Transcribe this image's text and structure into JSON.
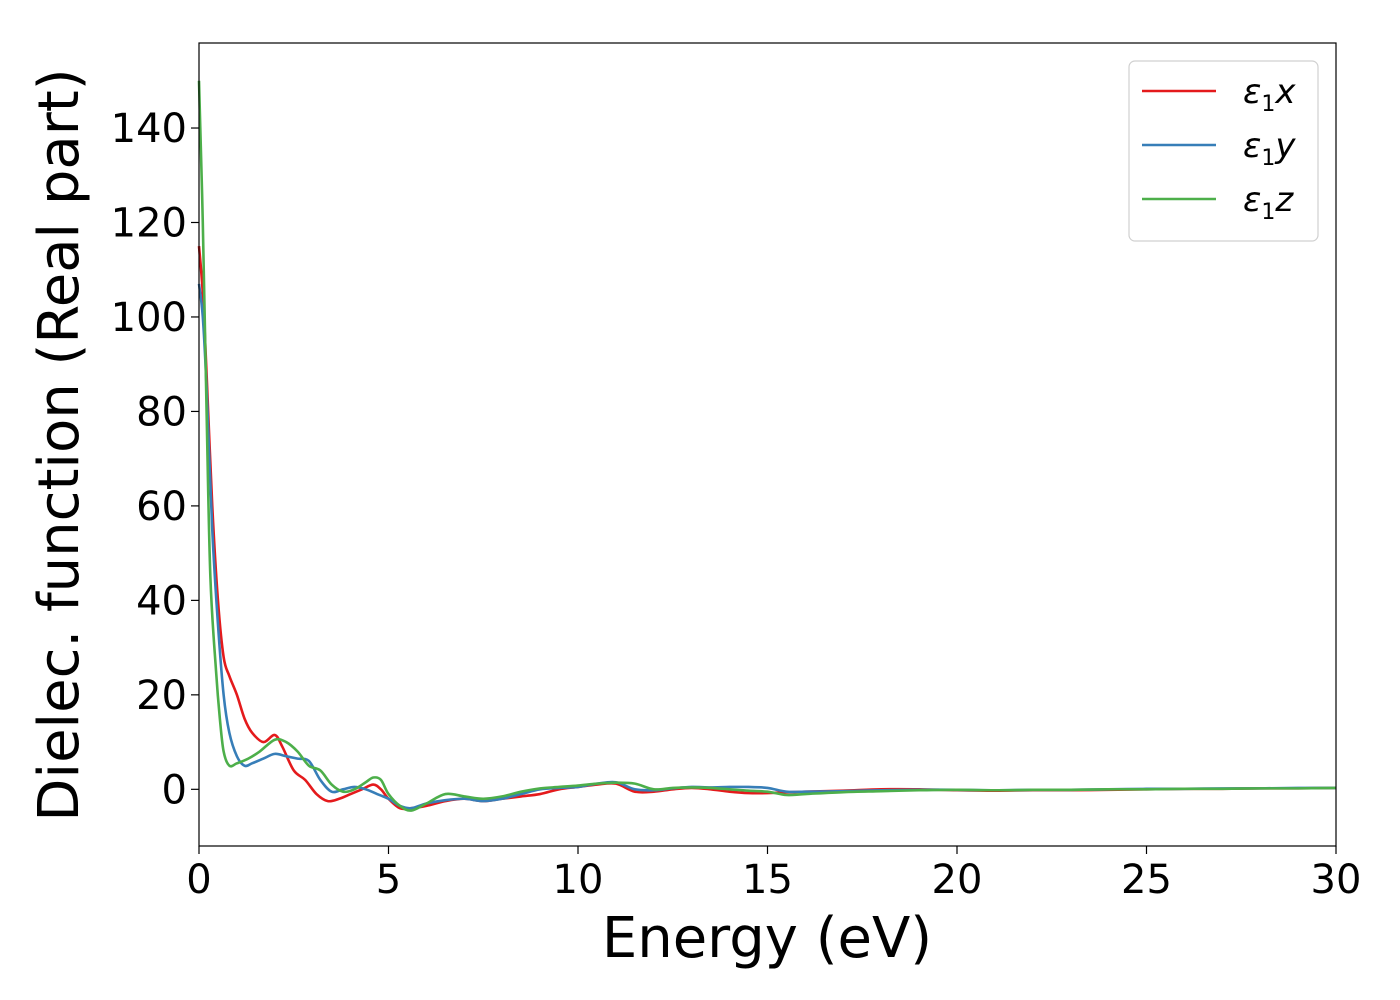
{
  "chart_data": {
    "type": "line",
    "xlabel": "Energy (eV)",
    "ylabel": "Dielec. function (Real part)",
    "xlim": [
      0,
      30
    ],
    "ylim": [
      -12,
      158
    ],
    "xticks": [
      0,
      5,
      10,
      15,
      20,
      25,
      30
    ],
    "yticks": [
      0,
      20,
      40,
      60,
      80,
      100,
      120,
      140
    ],
    "grid": false,
    "legend_position": "top-right",
    "series": [
      {
        "name": "ε1x",
        "symbol": "ε",
        "subscript": "1",
        "axis": "x",
        "color": "#e41a1c",
        "x": [
          0,
          0.1,
          0.2,
          0.35,
          0.5,
          0.65,
          0.8,
          1.0,
          1.2,
          1.4,
          1.7,
          2.0,
          2.2,
          2.5,
          2.8,
          3.1,
          3.4,
          3.7,
          4.0,
          4.3,
          4.6,
          4.8,
          5.0,
          5.3,
          5.6,
          6.0,
          6.5,
          7.0,
          7.5,
          8.0,
          8.5,
          9.0,
          9.5,
          10.0,
          10.5,
          11.0,
          11.5,
          12.0,
          12.5,
          13.0,
          13.5,
          14.0,
          14.5,
          15.0,
          16.0,
          17.0,
          18.0,
          19.0,
          20.0,
          21.0,
          22.0,
          23.0,
          24.0,
          25.0,
          26.0,
          27.0,
          28.0,
          29.0,
          30.0
        ],
        "y": [
          115,
          105,
          88,
          60,
          40,
          28,
          24,
          20,
          15,
          12,
          10,
          11.5,
          9,
          4,
          2,
          -1,
          -2.5,
          -2,
          -1,
          0,
          1,
          0,
          -2,
          -4,
          -4,
          -3.5,
          -2.5,
          -2,
          -2.5,
          -2,
          -1.5,
          -1,
          0,
          0.5,
          1,
          1.2,
          -0.5,
          -0.5,
          0,
          0.3,
          0,
          -0.5,
          -0.8,
          -0.8,
          -0.5,
          -0.3,
          0,
          0,
          -0.2,
          -0.3,
          -0.2,
          -0.2,
          -0.1,
          0,
          0.1,
          0.1,
          0.2,
          0.2,
          0.3
        ]
      },
      {
        "name": "ε1y",
        "symbol": "ε",
        "subscript": "1",
        "axis": "y",
        "color": "#377eb8",
        "x": [
          0,
          0.1,
          0.2,
          0.35,
          0.5,
          0.65,
          0.8,
          1.0,
          1.2,
          1.4,
          1.7,
          2.0,
          2.3,
          2.6,
          2.9,
          3.2,
          3.5,
          3.8,
          4.1,
          4.4,
          4.7,
          5.0,
          5.3,
          5.6,
          6.0,
          6.5,
          7.0,
          7.5,
          8.0,
          8.5,
          9.0,
          9.5,
          10.0,
          10.5,
          11.0,
          11.5,
          12.0,
          12.5,
          13.0,
          13.5,
          14.0,
          14.5,
          15.0,
          15.5,
          16.0,
          17.0,
          18.0,
          19.0,
          20.0,
          21.0,
          22.0,
          23.0,
          24.0,
          25.0,
          26.0,
          27.0,
          28.0,
          29.0,
          30.0
        ],
        "y": [
          107,
          100,
          85,
          55,
          35,
          20,
          12,
          7,
          5,
          5.5,
          6.5,
          7.5,
          7,
          6.5,
          6,
          2,
          -0.5,
          0,
          0.5,
          0,
          -1,
          -2,
          -3.5,
          -4,
          -3,
          -2.3,
          -2,
          -2.5,
          -2,
          -1,
          0,
          0.3,
          0.5,
          1.2,
          1.5,
          0,
          -0.2,
          0.2,
          0.5,
          0.4,
          0.5,
          0.5,
          0.3,
          -0.5,
          -0.5,
          -0.4,
          -0.2,
          -0.1,
          -0.1,
          -0.2,
          -0.1,
          -0.1,
          0,
          0.1,
          0.1,
          0.2,
          0.2,
          0.3,
          0.3
        ]
      },
      {
        "name": "ε1z",
        "symbol": "ε",
        "subscript": "1",
        "axis": "z",
        "color": "#4daf4a",
        "x": [
          0,
          0.1,
          0.2,
          0.3,
          0.45,
          0.55,
          0.65,
          0.8,
          1.0,
          1.3,
          1.6,
          2.0,
          2.3,
          2.6,
          2.9,
          3.2,
          3.5,
          3.8,
          4.1,
          4.4,
          4.6,
          4.8,
          5.0,
          5.3,
          5.6,
          6.0,
          6.5,
          7.0,
          7.5,
          8.0,
          8.5,
          9.0,
          9.5,
          10.0,
          10.5,
          11.0,
          11.5,
          12.0,
          12.5,
          13.0,
          13.5,
          14.0,
          14.5,
          15.0,
          15.5,
          16.0,
          17.0,
          18.0,
          19.0,
          20.0,
          21.0,
          22.0,
          23.0,
          24.0,
          25.0,
          26.0,
          27.0,
          28.0,
          29.0,
          30.0
        ],
        "y": [
          150,
          120,
          80,
          45,
          25,
          15,
          8,
          5,
          5.5,
          6.5,
          8,
          10.5,
          10,
          8,
          5,
          4,
          1,
          -0.5,
          0,
          1.5,
          2.5,
          2,
          -1,
          -3.5,
          -4.5,
          -3,
          -1,
          -1.5,
          -2,
          -1.5,
          -0.5,
          0.2,
          0.5,
          0.8,
          1.2,
          1.4,
          1.2,
          0,
          0.3,
          0.4,
          0.3,
          0,
          -0.3,
          -0.5,
          -1.2,
          -1,
          -0.6,
          -0.4,
          -0.2,
          -0.1,
          -0.2,
          -0.1,
          -0.1,
          0,
          0,
          0.1,
          0.1,
          0.2,
          0.2,
          0.3
        ]
      }
    ]
  }
}
